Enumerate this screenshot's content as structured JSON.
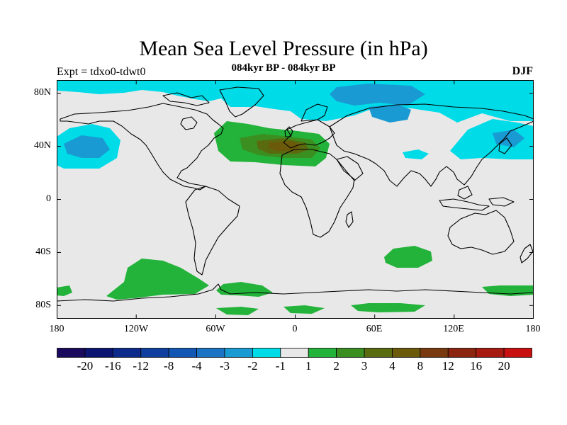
{
  "title": "Mean Sea Level Pressure (in hPa)",
  "subtitle": "084kyr BP - 084kyr BP",
  "expt_label": "Expt = tdxo0-tdwt0",
  "season": "DJF",
  "lat_ticks": [
    "80N",
    "40N",
    "0",
    "40S",
    "80S"
  ],
  "lon_ticks": [
    "180",
    "120W",
    "60W",
    "0",
    "60E",
    "120E",
    "180"
  ],
  "colorbar": {
    "colors": [
      "#1a0a5e",
      "#0b1470",
      "#0b2a8c",
      "#0f3f9e",
      "#1157b3",
      "#1a74c3",
      "#1a9ad2",
      "#00dbe8",
      "#e8e8e8",
      "#23b33a",
      "#3b8f20",
      "#5a6b0f",
      "#6b5a0a",
      "#7a3a10",
      "#8c2510",
      "#a61a10",
      "#c81010"
    ],
    "labels": [
      "-20",
      "-16",
      "-12",
      "-8",
      "-4",
      "-3",
      "-2",
      "-1",
      "1",
      "2",
      "3",
      "4",
      "8",
      "12",
      "16",
      "20"
    ]
  },
  "colors": {
    "neutral": "#e8e8e8",
    "cyan": "#00dbe8",
    "mid_blue": "#1a9ad2",
    "blue": "#1a74c3",
    "green": "#23b33a",
    "dark_green": "#3b8f20",
    "olive": "#5a6b0f",
    "brown": "#6b5a0a"
  }
}
